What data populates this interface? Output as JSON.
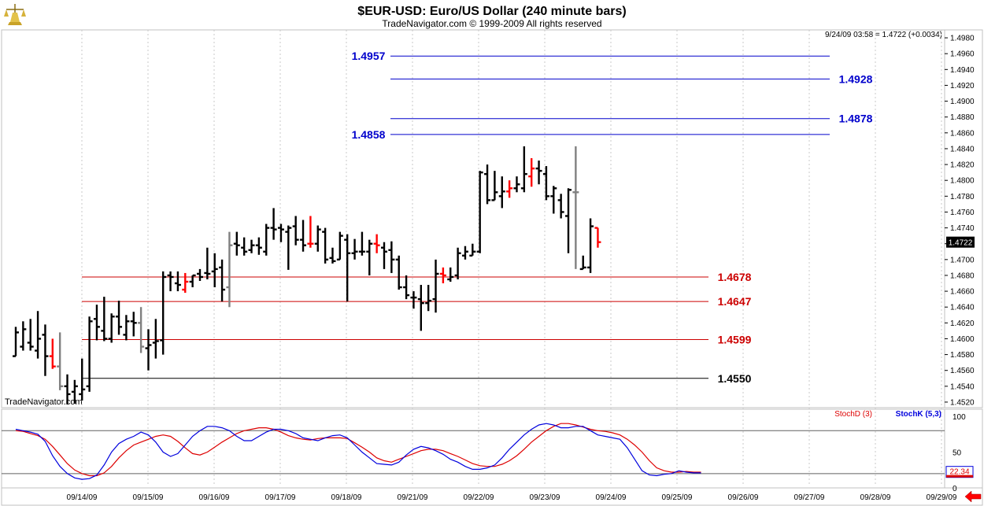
{
  "header": {
    "title": "$EUR-USD:  Euro/US Dollar  (240 minute bars)",
    "copyright": "TradeNavigator.com © 1999-2009 All rights reserved",
    "quote": "9/24/09 03:58 = 1.4722 (+0.0034)",
    "watermark": "TradeNavigator.com"
  },
  "colors": {
    "price_bar": "#000000",
    "gap_bar": "#808080",
    "highlight_bar": "#ff0000",
    "resistance": "#0000cc",
    "support": "#cc0000",
    "base": "#000000",
    "stoch_d": "#dd0000",
    "stoch_k": "#0000dd"
  },
  "chart_data": [
    {
      "type": "ohlc",
      "ylim": [
        1.4513,
        1.499
      ],
      "y_ticks": [
        "1.4520",
        "1.4540",
        "1.4560",
        "1.4580",
        "1.4600",
        "1.4620",
        "1.4640",
        "1.4660",
        "1.4680",
        "1.4700",
        "1.4720",
        "1.4740",
        "1.4760",
        "1.4780",
        "1.4800",
        "1.4820",
        "1.4840",
        "1.4860",
        "1.4880",
        "1.4900",
        "1.4920",
        "1.4940",
        "1.4960",
        "1.4980"
      ],
      "x_labels": [
        "09/14/09",
        "09/15/09",
        "09/16/09",
        "09/17/09",
        "09/18/09",
        "09/21/09",
        "09/22/09",
        "09/23/09",
        "09/24/09",
        "09/25/09",
        "09/26/09",
        "09/27/09",
        "09/28/09",
        "09/29/09"
      ],
      "last_price": "1.4722",
      "bars": [
        {
          "o": 1.4578,
          "h": 1.4615,
          "l": 1.4578,
          "c": 1.4608,
          "s": "n"
        },
        {
          "o": 1.459,
          "h": 1.4622,
          "l": 1.4585,
          "c": 1.4612,
          "s": "n"
        },
        {
          "o": 1.4595,
          "h": 1.4625,
          "l": 1.4585,
          "c": 1.459,
          "s": "n"
        },
        {
          "o": 1.4585,
          "h": 1.4635,
          "l": 1.4575,
          "c": 1.46,
          "s": "n"
        },
        {
          "o": 1.4605,
          "h": 1.4618,
          "l": 1.4553,
          "c": 1.4578,
          "s": "n"
        },
        {
          "o": 1.4578,
          "h": 1.46,
          "l": 1.4562,
          "c": 1.4565,
          "s": "r"
        },
        {
          "o": 1.4565,
          "h": 1.4608,
          "l": 1.4535,
          "c": 1.454,
          "s": "g"
        },
        {
          "o": 1.454,
          "h": 1.4555,
          "l": 1.4517,
          "c": 1.453,
          "s": "n"
        },
        {
          "o": 1.4533,
          "h": 1.4548,
          "l": 1.4518,
          "c": 1.454,
          "s": "n"
        },
        {
          "o": 1.453,
          "h": 1.4575,
          "l": 1.4522,
          "c": 1.4536,
          "s": "n"
        },
        {
          "o": 1.454,
          "h": 1.4628,
          "l": 1.4533,
          "c": 1.4622,
          "s": "n"
        },
        {
          "o": 1.4625,
          "h": 1.4643,
          "l": 1.4598,
          "c": 1.4615,
          "s": "n"
        },
        {
          "o": 1.461,
          "h": 1.4653,
          "l": 1.4597,
          "c": 1.46,
          "s": "n"
        },
        {
          "o": 1.46,
          "h": 1.4632,
          "l": 1.4595,
          "c": 1.4628,
          "s": "n"
        },
        {
          "o": 1.4628,
          "h": 1.4648,
          "l": 1.4605,
          "c": 1.4615,
          "s": "n"
        },
        {
          "o": 1.4605,
          "h": 1.463,
          "l": 1.4598,
          "c": 1.4622,
          "s": "n"
        },
        {
          "o": 1.4622,
          "h": 1.4634,
          "l": 1.4603,
          "c": 1.462,
          "s": "n"
        },
        {
          "o": 1.462,
          "h": 1.464,
          "l": 1.4582,
          "c": 1.459,
          "s": "g"
        },
        {
          "o": 1.4588,
          "h": 1.4612,
          "l": 1.456,
          "c": 1.4592,
          "s": "n"
        },
        {
          "o": 1.4595,
          "h": 1.4625,
          "l": 1.4575,
          "c": 1.4597,
          "s": "n"
        },
        {
          "o": 1.4598,
          "h": 1.4685,
          "l": 1.458,
          "c": 1.4678,
          "s": "n"
        },
        {
          "o": 1.468,
          "h": 1.4685,
          "l": 1.466,
          "c": 1.4678,
          "s": "n"
        },
        {
          "o": 1.467,
          "h": 1.4685,
          "l": 1.466,
          "c": 1.4668,
          "s": "n"
        },
        {
          "o": 1.4662,
          "h": 1.4683,
          "l": 1.4658,
          "c": 1.4672,
          "s": "r"
        },
        {
          "o": 1.4672,
          "h": 1.468,
          "l": 1.4665,
          "c": 1.468,
          "s": "n"
        },
        {
          "o": 1.4682,
          "h": 1.4688,
          "l": 1.4673,
          "c": 1.4678,
          "s": "n"
        },
        {
          "o": 1.4683,
          "h": 1.4715,
          "l": 1.4675,
          "c": 1.4682,
          "s": "n"
        },
        {
          "o": 1.4685,
          "h": 1.4708,
          "l": 1.4665,
          "c": 1.4688,
          "s": "n"
        },
        {
          "o": 1.469,
          "h": 1.47,
          "l": 1.4647,
          "c": 1.4662,
          "s": "n"
        },
        {
          "o": 1.4665,
          "h": 1.4735,
          "l": 1.464,
          "c": 1.4718,
          "s": "g"
        },
        {
          "o": 1.472,
          "h": 1.4735,
          "l": 1.4705,
          "c": 1.4718,
          "s": "n"
        },
        {
          "o": 1.4715,
          "h": 1.4728,
          "l": 1.4705,
          "c": 1.471,
          "s": "n"
        },
        {
          "o": 1.4712,
          "h": 1.4725,
          "l": 1.4708,
          "c": 1.4718,
          "s": "n"
        },
        {
          "o": 1.4718,
          "h": 1.4728,
          "l": 1.4706,
          "c": 1.4715,
          "s": "n"
        },
        {
          "o": 1.471,
          "h": 1.4745,
          "l": 1.4705,
          "c": 1.474,
          "s": "n"
        },
        {
          "o": 1.474,
          "h": 1.4765,
          "l": 1.4725,
          "c": 1.4738,
          "s": "n"
        },
        {
          "o": 1.474,
          "h": 1.4745,
          "l": 1.4722,
          "c": 1.4738,
          "s": "n"
        },
        {
          "o": 1.4735,
          "h": 1.4743,
          "l": 1.4687,
          "c": 1.474,
          "s": "n"
        },
        {
          "o": 1.4742,
          "h": 1.4755,
          "l": 1.4718,
          "c": 1.4725,
          "s": "n"
        },
        {
          "o": 1.4725,
          "h": 1.475,
          "l": 1.471,
          "c": 1.4718,
          "s": "n"
        },
        {
          "o": 1.472,
          "h": 1.4755,
          "l": 1.4715,
          "c": 1.472,
          "s": "r"
        },
        {
          "o": 1.472,
          "h": 1.4743,
          "l": 1.471,
          "c": 1.4738,
          "s": "n"
        },
        {
          "o": 1.4735,
          "h": 1.474,
          "l": 1.4695,
          "c": 1.47,
          "s": "n"
        },
        {
          "o": 1.4702,
          "h": 1.4715,
          "l": 1.4695,
          "c": 1.4698,
          "s": "n"
        },
        {
          "o": 1.47,
          "h": 1.4735,
          "l": 1.47,
          "c": 1.473,
          "s": "n"
        },
        {
          "o": 1.4725,
          "h": 1.4732,
          "l": 1.4647,
          "c": 1.4708,
          "s": "n"
        },
        {
          "o": 1.4708,
          "h": 1.4726,
          "l": 1.47,
          "c": 1.471,
          "s": "n"
        },
        {
          "o": 1.471,
          "h": 1.4735,
          "l": 1.4705,
          "c": 1.471,
          "s": "n"
        },
        {
          "o": 1.471,
          "h": 1.4725,
          "l": 1.468,
          "c": 1.472,
          "s": "n"
        },
        {
          "o": 1.472,
          "h": 1.4732,
          "l": 1.4708,
          "c": 1.4718,
          "s": "r"
        },
        {
          "o": 1.4715,
          "h": 1.4722,
          "l": 1.4688,
          "c": 1.471,
          "s": "n"
        },
        {
          "o": 1.4712,
          "h": 1.4723,
          "l": 1.4683,
          "c": 1.47,
          "s": "n"
        },
        {
          "o": 1.47,
          "h": 1.4705,
          "l": 1.4662,
          "c": 1.4665,
          "s": "n"
        },
        {
          "o": 1.4665,
          "h": 1.468,
          "l": 1.465,
          "c": 1.4655,
          "s": "n"
        },
        {
          "o": 1.4652,
          "h": 1.466,
          "l": 1.4638,
          "c": 1.4652,
          "s": "n"
        },
        {
          "o": 1.465,
          "h": 1.4668,
          "l": 1.461,
          "c": 1.4645,
          "s": "n"
        },
        {
          "o": 1.4645,
          "h": 1.4668,
          "l": 1.4635,
          "c": 1.4648,
          "s": "n"
        },
        {
          "o": 1.465,
          "h": 1.47,
          "l": 1.4633,
          "c": 1.4682,
          "s": "n"
        },
        {
          "o": 1.4682,
          "h": 1.469,
          "l": 1.467,
          "c": 1.468,
          "s": "r"
        },
        {
          "o": 1.4675,
          "h": 1.469,
          "l": 1.4672,
          "c": 1.4678,
          "s": "n"
        },
        {
          "o": 1.468,
          "h": 1.4715,
          "l": 1.4675,
          "c": 1.4708,
          "s": "n"
        },
        {
          "o": 1.4705,
          "h": 1.4717,
          "l": 1.47,
          "c": 1.471,
          "s": "n"
        },
        {
          "o": 1.4705,
          "h": 1.472,
          "l": 1.4705,
          "c": 1.471,
          "s": "n"
        },
        {
          "o": 1.471,
          "h": 1.4812,
          "l": 1.4708,
          "c": 1.481,
          "s": "n"
        },
        {
          "o": 1.4808,
          "h": 1.482,
          "l": 1.477,
          "c": 1.4775,
          "s": "n"
        },
        {
          "o": 1.4775,
          "h": 1.4812,
          "l": 1.4775,
          "c": 1.4785,
          "s": "n"
        },
        {
          "o": 1.478,
          "h": 1.4805,
          "l": 1.4765,
          "c": 1.4786,
          "s": "n"
        },
        {
          "o": 1.4786,
          "h": 1.48,
          "l": 1.4778,
          "c": 1.479,
          "s": "r"
        },
        {
          "o": 1.479,
          "h": 1.4805,
          "l": 1.4785,
          "c": 1.4795,
          "s": "n"
        },
        {
          "o": 1.479,
          "h": 1.4843,
          "l": 1.4785,
          "c": 1.4808,
          "s": "n"
        },
        {
          "o": 1.4805,
          "h": 1.4828,
          "l": 1.4792,
          "c": 1.4815,
          "s": "r"
        },
        {
          "o": 1.4815,
          "h": 1.4825,
          "l": 1.4795,
          "c": 1.4812,
          "s": "n"
        },
        {
          "o": 1.4808,
          "h": 1.4818,
          "l": 1.4775,
          "c": 1.478,
          "s": "n"
        },
        {
          "o": 1.478,
          "h": 1.4793,
          "l": 1.4758,
          "c": 1.479,
          "s": "n"
        },
        {
          "o": 1.4775,
          "h": 1.4783,
          "l": 1.4752,
          "c": 1.476,
          "s": "n"
        },
        {
          "o": 1.4755,
          "h": 1.479,
          "l": 1.4708,
          "c": 1.4788,
          "s": "n"
        },
        {
          "o": 1.4785,
          "h": 1.4843,
          "l": 1.4688,
          "c": 1.4785,
          "s": "g"
        },
        {
          "o": 1.4688,
          "h": 1.4705,
          "l": 1.4688,
          "c": 1.469,
          "s": "n"
        },
        {
          "o": 1.469,
          "h": 1.4752,
          "l": 1.4683,
          "c": 1.4742,
          "s": "n"
        },
        {
          "o": 1.474,
          "h": 1.474,
          "l": 1.4715,
          "c": 1.4722,
          "s": "r"
        }
      ],
      "levels": [
        {
          "value": 1.4957,
          "label": "1.4957",
          "kind": "resistance",
          "label_side": "left"
        },
        {
          "value": 1.4928,
          "label": "1.4928",
          "kind": "resistance",
          "label_side": "right"
        },
        {
          "value": 1.4878,
          "label": "1.4878",
          "kind": "resistance",
          "label_side": "right"
        },
        {
          "value": 1.4858,
          "label": "1.4858",
          "kind": "resistance",
          "label_side": "left"
        },
        {
          "value": 1.4678,
          "label": "1.4678",
          "kind": "support",
          "label_side": "right"
        },
        {
          "value": 1.4647,
          "label": "1.4647",
          "kind": "support",
          "label_side": "right"
        },
        {
          "value": 1.4599,
          "label": "1.4599",
          "kind": "support",
          "label_side": "right"
        },
        {
          "value": 1.455,
          "label": "1.4550",
          "kind": "base",
          "label_side": "right"
        }
      ]
    },
    {
      "type": "line",
      "ylim": [
        0,
        110
      ],
      "y_ticks": [
        "100",
        "50",
        "0"
      ],
      "reference_lines": [
        80,
        20
      ],
      "last_value": "22.34",
      "series": [
        {
          "name": "StochD (3)",
          "color": "#dd0000",
          "values": [
            80,
            79,
            76,
            73,
            68,
            58,
            46,
            34,
            25,
            20,
            17,
            17,
            21,
            30,
            42,
            52,
            60,
            64,
            68,
            72,
            74,
            72,
            65,
            56,
            48,
            46,
            50,
            57,
            64,
            70,
            76,
            80,
            82,
            84,
            84,
            82,
            78,
            73,
            70,
            68,
            67,
            69,
            70,
            70,
            70,
            69,
            63,
            57,
            50,
            42,
            38,
            36,
            40,
            44,
            48,
            52,
            54,
            54,
            52,
            48,
            44,
            39,
            34,
            31,
            30,
            30,
            33,
            38,
            45,
            54,
            64,
            72,
            80,
            86,
            90,
            90,
            88,
            85,
            82,
            80,
            79,
            77,
            74,
            68,
            60,
            50,
            38,
            28,
            24,
            22,
            22,
            23,
            22,
            22
          ]
        },
        {
          "name": "StochK (5,3)",
          "color": "#0000dd",
          "values": [
            82,
            80,
            78,
            75,
            65,
            45,
            30,
            20,
            14,
            12,
            13,
            18,
            32,
            50,
            62,
            68,
            72,
            78,
            74,
            64,
            50,
            44,
            48,
            60,
            72,
            80,
            86,
            86,
            84,
            80,
            72,
            66,
            66,
            72,
            78,
            82,
            82,
            80,
            76,
            70,
            68,
            66,
            70,
            73,
            74,
            70,
            60,
            50,
            42,
            34,
            33,
            32,
            36,
            46,
            54,
            58,
            56,
            52,
            47,
            40,
            36,
            30,
            26,
            26,
            28,
            32,
            42,
            54,
            64,
            74,
            82,
            88,
            90,
            88,
            84,
            84,
            86,
            86,
            80,
            74,
            72,
            70,
            68,
            56,
            40,
            24,
            18,
            17,
            19,
            20,
            24,
            22,
            21,
            21
          ]
        }
      ]
    }
  ]
}
